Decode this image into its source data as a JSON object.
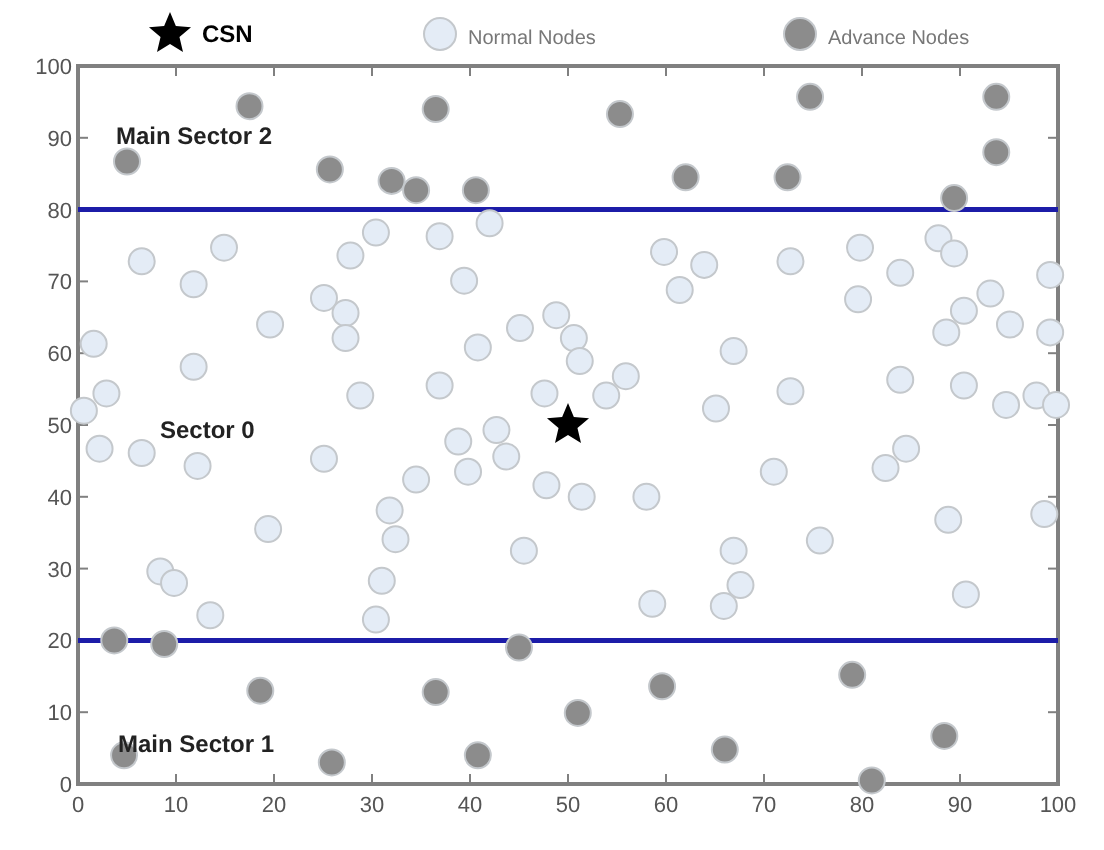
{
  "chart_data": {
    "type": "scatter",
    "legend": "top",
    "xlim": [
      0,
      100
    ],
    "ylim": [
      0,
      100
    ],
    "xticks": [
      0,
      10,
      20,
      30,
      40,
      50,
      60,
      70,
      80,
      90,
      100
    ],
    "yticks": [
      0,
      10,
      20,
      30,
      40,
      50,
      60,
      70,
      80,
      90,
      100
    ],
    "grid": false,
    "series": [
      {
        "name": "CSN",
        "color": "#000000",
        "marker": "star",
        "x": [
          50
        ],
        "values": [
          50
        ]
      },
      {
        "name": "Normal Nodes",
        "color": "#e4ecf6",
        "marker": "circle",
        "x": [
          6.5,
          11.8,
          14.9,
          1.6,
          2.9,
          0.6,
          11.8,
          19.6,
          27.8,
          30.4,
          25.1,
          27.3,
          27.3,
          28.8,
          36.9,
          42,
          39.4,
          40.8,
          45.1,
          36.9,
          47.6,
          48.8,
          59.8,
          63.9,
          61.4,
          72.7,
          79.8,
          83.9,
          79.6,
          87.8,
          89.4,
          93.1,
          90.4,
          88.6,
          95.1,
          99.2,
          99.2,
          50.6,
          51.2,
          66.9,
          72.7,
          83.9,
          90.4,
          94.7,
          97.8,
          99.8,
          55.9,
          53.9,
          65.1,
          2.2,
          6.5,
          12.2,
          25.1,
          34.5,
          38.8,
          39.8,
          42.7,
          43.7,
          47.8,
          31.8,
          32.4,
          19.4,
          8.4,
          9.8,
          13.5,
          31,
          30.4,
          45.5,
          71,
          82.4,
          84.5,
          51.4,
          58,
          88.8,
          98.6,
          75.7,
          66.9,
          67.6,
          65.9,
          58.6,
          90.6
        ],
        "values": [
          72.8,
          69.6,
          74.7,
          61.3,
          54.4,
          52,
          58.1,
          64,
          73.6,
          76.8,
          67.7,
          65.6,
          62.1,
          54.1,
          76.3,
          78.1,
          70.1,
          60.8,
          63.5,
          55.5,
          54.4,
          65.3,
          74.1,
          72.3,
          68.8,
          72.8,
          74.7,
          71.2,
          67.5,
          76,
          73.9,
          68.3,
          65.9,
          62.9,
          64,
          70.9,
          62.9,
          62.1,
          58.9,
          60.3,
          54.7,
          56.3,
          55.5,
          52.8,
          54.1,
          52.8,
          56.8,
          54.1,
          52.3,
          46.7,
          46.1,
          44.3,
          45.3,
          42.4,
          47.7,
          43.5,
          49.3,
          45.6,
          41.6,
          38.1,
          34.1,
          35.5,
          29.6,
          28,
          23.5,
          28.3,
          22.9,
          32.5,
          43.5,
          44,
          46.7,
          40,
          40,
          36.8,
          37.6,
          33.9,
          32.5,
          27.7,
          24.8,
          25.1,
          26.4
        ]
      },
      {
        "name": "Advance Nodes",
        "color": "#8c8c8c",
        "marker": "circle",
        "x": [
          17.5,
          5,
          25.7,
          32,
          34.5,
          36.5,
          40.6,
          55.3,
          62,
          74.7,
          72.4,
          89.4,
          93.7,
          93.7,
          3.7,
          8.8,
          18.6,
          4.7,
          25.9,
          36.5,
          40.8,
          45,
          51,
          59.6,
          66,
          79,
          81,
          88.4
        ],
        "values": [
          94.4,
          86.7,
          85.6,
          84,
          82.7,
          94,
          82.7,
          93.3,
          84.5,
          95.7,
          84.5,
          81.6,
          95.7,
          88,
          20,
          19.5,
          13,
          4,
          3,
          12.8,
          4,
          19,
          9.9,
          13.6,
          4.8,
          15.2,
          0.5,
          6.7
        ]
      }
    ],
    "ref_lines": [
      {
        "axis": "y",
        "value": 20,
        "color": "#1c1ca8"
      },
      {
        "axis": "y",
        "value": 80,
        "color": "#1c1ca8"
      }
    ],
    "annotations": [
      "Main Sector 2",
      "Sector 0",
      "Main Sector 1"
    ]
  }
}
